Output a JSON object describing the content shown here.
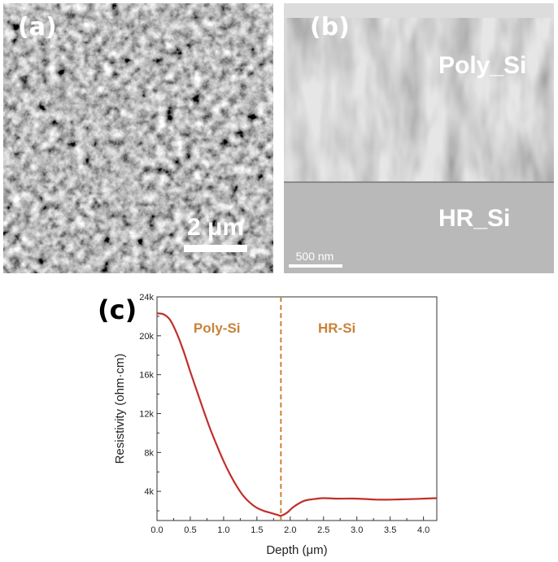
{
  "panels": {
    "a": {
      "label": "(a)",
      "scalebar": "2 μm"
    },
    "b": {
      "label": "(b)",
      "top_layer": "Poly_Si",
      "bottom_layer": "HR_Si",
      "scalebar": "500 nm"
    },
    "c": {
      "label": "(c)"
    }
  },
  "chart_data": {
    "type": "line",
    "xlabel": "Depth (μm)",
    "ylabel": "Resistivity (ohm·cm)",
    "xlim": [
      0,
      4.2
    ],
    "ylim": [
      1000,
      24000
    ],
    "xticks": [
      "0.0",
      "0.5",
      "1.0",
      "1.5",
      "2.0",
      "2.5",
      "3.0",
      "3.5",
      "4.0"
    ],
    "xtick_values": [
      0,
      0.5,
      1.0,
      1.5,
      2.0,
      2.5,
      3.0,
      3.5,
      4.0
    ],
    "yticks": [
      "4k",
      "8k",
      "12k",
      "16k",
      "20k",
      "24k"
    ],
    "ytick_values": [
      4000,
      8000,
      12000,
      16000,
      20000,
      24000
    ],
    "boundary_x": 1.86,
    "regions": [
      "Poly-Si",
      "HR-Si"
    ],
    "line_color": "#c0302b",
    "boundary_color": "#c8833a",
    "series": [
      {
        "x": [
          0,
          0.1,
          0.2,
          0.3,
          0.4,
          0.5,
          0.6,
          0.7,
          0.8,
          0.9,
          1.0,
          1.1,
          1.2,
          1.3,
          1.4,
          1.5,
          1.6,
          1.7,
          1.8,
          1.86,
          1.95,
          2.05,
          2.2,
          2.35,
          2.5,
          2.7,
          3.0,
          3.3,
          3.5,
          3.8,
          4.0,
          4.2
        ],
        "y": [
          22300,
          22200,
          21600,
          20200,
          18400,
          16300,
          14300,
          12300,
          10400,
          8700,
          7100,
          5700,
          4500,
          3500,
          2800,
          2300,
          2000,
          1800,
          1600,
          1500,
          1800,
          2400,
          3000,
          3200,
          3300,
          3250,
          3250,
          3150,
          3150,
          3200,
          3250,
          3300
        ]
      }
    ]
  }
}
